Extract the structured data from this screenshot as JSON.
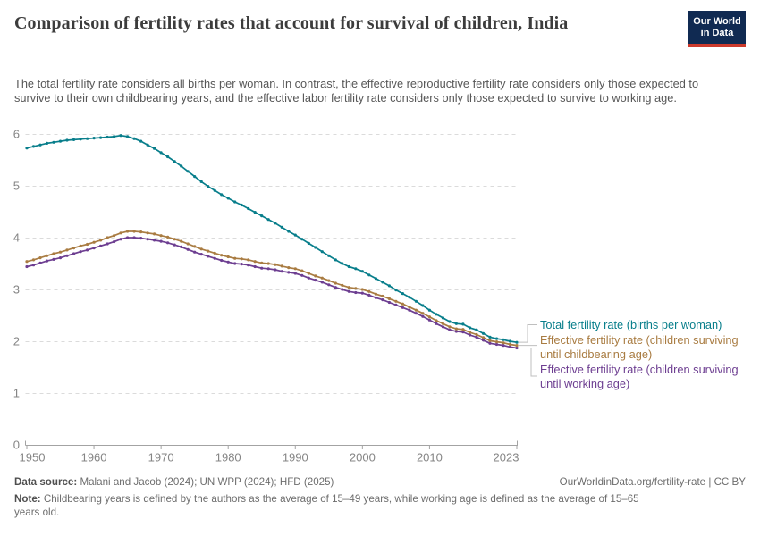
{
  "header": {
    "title": "Comparison of fertility rates that account for survival of children, India",
    "subtitle": "The total fertility rate considers all births per woman. In contrast, the effective reproductive fertility rate considers only those expected to survive to their own childbearing years, and the effective labor fertility rate considers only those expected to survive to working age.",
    "logo_line1": "Our World",
    "logo_line2": "in Data",
    "logo_bg_color": "#102a52",
    "logo_accent_color": "#cc3a2c"
  },
  "chart_data": {
    "type": "line",
    "title": "Comparison of fertility rates that account for survival of children, India",
    "xlabel": "",
    "ylabel": "",
    "ylim": [
      0,
      6
    ],
    "yticks": [
      0,
      1,
      2,
      3,
      4,
      5,
      6
    ],
    "xticks": [
      1950,
      1960,
      1970,
      1980,
      1990,
      2000,
      2010,
      2023
    ],
    "grid": "horizontal-dashed",
    "legend_position": "right",
    "marker": "point-every-year",
    "years": [
      1950,
      1951,
      1952,
      1953,
      1954,
      1955,
      1956,
      1957,
      1958,
      1959,
      1960,
      1961,
      1962,
      1963,
      1964,
      1965,
      1966,
      1967,
      1968,
      1969,
      1970,
      1971,
      1972,
      1973,
      1974,
      1975,
      1976,
      1977,
      1978,
      1979,
      1980,
      1981,
      1982,
      1983,
      1984,
      1985,
      1986,
      1987,
      1988,
      1989,
      1990,
      1991,
      1992,
      1993,
      1994,
      1995,
      1996,
      1997,
      1998,
      1999,
      2000,
      2001,
      2002,
      2003,
      2004,
      2005,
      2006,
      2007,
      2008,
      2009,
      2010,
      2011,
      2012,
      2013,
      2014,
      2015,
      2016,
      2017,
      2018,
      2019,
      2020,
      2021,
      2022,
      2023
    ],
    "series": [
      {
        "name": "Total fertility rate (births per woman)",
        "color": "#087e8b",
        "values": [
          5.73,
          5.76,
          5.79,
          5.82,
          5.84,
          5.86,
          5.88,
          5.89,
          5.9,
          5.91,
          5.92,
          5.93,
          5.94,
          5.95,
          5.97,
          5.95,
          5.91,
          5.86,
          5.79,
          5.72,
          5.64,
          5.56,
          5.47,
          5.38,
          5.28,
          5.18,
          5.08,
          4.99,
          4.91,
          4.83,
          4.76,
          4.69,
          4.63,
          4.56,
          4.49,
          4.42,
          4.35,
          4.28,
          4.2,
          4.12,
          4.05,
          3.97,
          3.89,
          3.81,
          3.73,
          3.65,
          3.57,
          3.5,
          3.44,
          3.4,
          3.35,
          3.28,
          3.21,
          3.14,
          3.07,
          2.99,
          2.92,
          2.85,
          2.77,
          2.69,
          2.6,
          2.52,
          2.45,
          2.38,
          2.34,
          2.33,
          2.26,
          2.22,
          2.15,
          2.08,
          2.05,
          2.03,
          2.0,
          1.98
        ]
      },
      {
        "name": "Effective fertility rate (children surviving until childbearing age)",
        "color": "#a97c42",
        "values": [
          3.54,
          3.57,
          3.61,
          3.65,
          3.69,
          3.72,
          3.76,
          3.8,
          3.84,
          3.87,
          3.91,
          3.95,
          4.0,
          4.04,
          4.09,
          4.12,
          4.12,
          4.11,
          4.09,
          4.07,
          4.04,
          4.01,
          3.97,
          3.93,
          3.88,
          3.83,
          3.78,
          3.74,
          3.7,
          3.66,
          3.63,
          3.6,
          3.59,
          3.57,
          3.54,
          3.51,
          3.5,
          3.48,
          3.45,
          3.42,
          3.4,
          3.36,
          3.31,
          3.26,
          3.22,
          3.17,
          3.12,
          3.08,
          3.04,
          3.02,
          3.0,
          2.96,
          2.91,
          2.87,
          2.82,
          2.77,
          2.72,
          2.66,
          2.6,
          2.54,
          2.47,
          2.4,
          2.34,
          2.28,
          2.24,
          2.23,
          2.17,
          2.13,
          2.07,
          2.01,
          1.99,
          1.97,
          1.94,
          1.92
        ]
      },
      {
        "name": "Effective fertility rate (children surviving until working age)",
        "color": "#6d3e91",
        "values": [
          3.44,
          3.47,
          3.51,
          3.55,
          3.58,
          3.61,
          3.65,
          3.69,
          3.73,
          3.76,
          3.8,
          3.84,
          3.88,
          3.92,
          3.97,
          4.0,
          4.0,
          3.99,
          3.97,
          3.95,
          3.93,
          3.9,
          3.86,
          3.82,
          3.77,
          3.72,
          3.68,
          3.64,
          3.6,
          3.56,
          3.53,
          3.5,
          3.49,
          3.47,
          3.44,
          3.41,
          3.4,
          3.38,
          3.35,
          3.33,
          3.31,
          3.27,
          3.22,
          3.18,
          3.14,
          3.09,
          3.04,
          3.0,
          2.96,
          2.94,
          2.93,
          2.89,
          2.84,
          2.8,
          2.75,
          2.7,
          2.65,
          2.6,
          2.54,
          2.48,
          2.41,
          2.34,
          2.28,
          2.22,
          2.19,
          2.18,
          2.12,
          2.08,
          2.02,
          1.96,
          1.94,
          1.92,
          1.89,
          1.87
        ]
      }
    ]
  },
  "legend": {
    "items": [
      {
        "lines": [
          "Total fertility rate (births per woman)",
          ""
        ]
      },
      {
        "lines": [
          "Effective fertility rate (children surviving",
          "until childbearing age)"
        ]
      },
      {
        "lines": [
          "Effective fertility rate (children surviving",
          "until working age)"
        ]
      }
    ]
  },
  "footer": {
    "datasource_label": "Data source:",
    "datasource_text": " Malani and Jacob (2024); UN WPP (2024); HFD (2025)",
    "right_text": "OurWorldinData.org/fertility-rate | CC BY",
    "note_label": "Note:",
    "note_text": " Childbearing years is defined by the authors as the average of 15–49 years, while working age is defined as the average of 15–65 years old."
  }
}
